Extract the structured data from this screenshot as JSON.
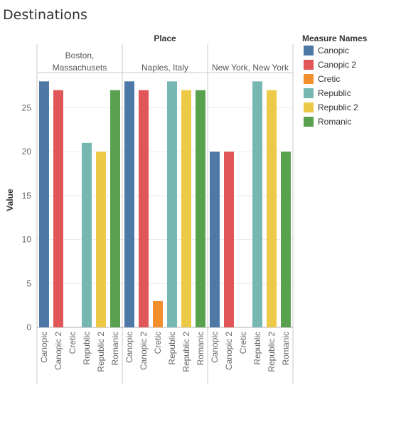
{
  "chart_data": {
    "type": "bar",
    "title": "Destinations",
    "column_header": "Place",
    "ylabel": "Value",
    "ylim": [
      0,
      29
    ],
    "yticks": [
      0,
      5,
      10,
      15,
      20,
      25
    ],
    "grid": true,
    "legend": {
      "title": "Measure Names",
      "placement": "right",
      "items": [
        {
          "name": "Canopic",
          "color": "#4e79a7"
        },
        {
          "name": "Canopic 2",
          "color": "#e15759"
        },
        {
          "name": "Cretic",
          "color": "#f28e2b"
        },
        {
          "name": "Republic",
          "color": "#76b7b2"
        },
        {
          "name": "Republic 2",
          "color": "#edc948"
        },
        {
          "name": "Romanic",
          "color": "#59a14f"
        }
      ]
    },
    "categories": [
      "Canopic",
      "Canopic 2",
      "Cretic",
      "Republic",
      "Republic 2",
      "Romanic"
    ],
    "panels": [
      {
        "place": [
          "Boston,",
          "Massachusets"
        ],
        "values": [
          28,
          27,
          null,
          21,
          20,
          27
        ]
      },
      {
        "place": [
          "Naples, Italy"
        ],
        "values": [
          28,
          27,
          3,
          28,
          27,
          27
        ]
      },
      {
        "place": [
          "New York, New York"
        ],
        "values": [
          20,
          20,
          null,
          28,
          27,
          20
        ]
      }
    ]
  }
}
